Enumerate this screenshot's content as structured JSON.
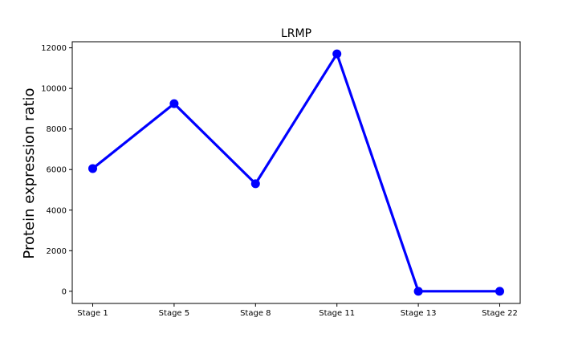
{
  "chart_data": {
    "type": "line",
    "title": "LRMP",
    "xlabel": "",
    "ylabel": "Protein expression ratio",
    "categories": [
      "Stage 1",
      "Stage 5",
      "Stage 8",
      "Stage 11",
      "Stage 13",
      "Stage 22"
    ],
    "series": [
      {
        "values": [
          6050,
          9250,
          5300,
          11700,
          0,
          0
        ]
      }
    ],
    "ylim": [
      -600,
      12300
    ],
    "yticks": [
      0,
      2000,
      4000,
      6000,
      8000,
      10000,
      12000
    ],
    "grid": false,
    "legend": "none",
    "line_color": "#0000ff",
    "marker": "circle"
  }
}
